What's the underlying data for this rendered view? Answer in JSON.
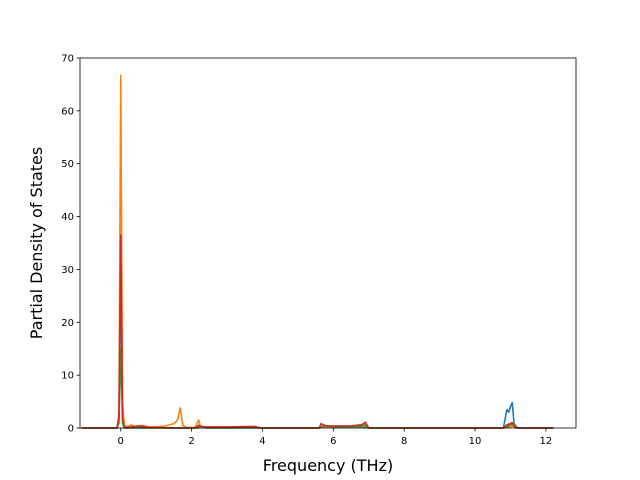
{
  "chart_data": {
    "type": "line",
    "title": "",
    "xlabel": "Frequency (THz)",
    "ylabel": "Partial Density of States",
    "xlim": [
      -1.15,
      12.85
    ],
    "ylim": [
      0,
      70
    ],
    "xticks": [
      0,
      2,
      4,
      6,
      8,
      10,
      12
    ],
    "yticks": [
      0,
      10,
      20,
      30,
      40,
      50,
      60,
      70
    ],
    "grid": false,
    "legend": "none",
    "series": [
      {
        "color": "#1f77b4",
        "points": [
          [
            -1.1,
            0
          ],
          [
            -0.1,
            0
          ],
          [
            -0.05,
            2
          ],
          [
            0,
            29
          ],
          [
            0.05,
            2
          ],
          [
            0.1,
            0.1
          ],
          [
            0.3,
            0.1
          ],
          [
            0.5,
            0.3
          ],
          [
            0.8,
            0.1
          ],
          [
            1.5,
            0
          ],
          [
            2.1,
            0
          ],
          [
            2.2,
            0.4
          ],
          [
            2.4,
            0.1
          ],
          [
            3.8,
            0.2
          ],
          [
            4.0,
            0
          ],
          [
            5.6,
            0
          ],
          [
            5.7,
            0.2
          ],
          [
            6.8,
            0.2
          ],
          [
            7.0,
            0
          ],
          [
            10.8,
            0
          ],
          [
            10.9,
            3.5
          ],
          [
            10.95,
            3.0
          ],
          [
            11.0,
            4.0
          ],
          [
            11.05,
            4.8
          ],
          [
            11.1,
            1.0
          ],
          [
            11.15,
            0
          ],
          [
            12.2,
            0
          ]
        ]
      },
      {
        "color": "#ff7f0e",
        "points": [
          [
            -1.1,
            0
          ],
          [
            -0.1,
            0
          ],
          [
            -0.05,
            3
          ],
          [
            0,
            66.7
          ],
          [
            0.05,
            5
          ],
          [
            0.1,
            0.5
          ],
          [
            0.2,
            0.2
          ],
          [
            0.3,
            0.6
          ],
          [
            0.4,
            0.3
          ],
          [
            0.6,
            0.5
          ],
          [
            0.8,
            0.2
          ],
          [
            1.2,
            0.3
          ],
          [
            1.5,
            0.8
          ],
          [
            1.6,
            1.5
          ],
          [
            1.68,
            3.8
          ],
          [
            1.75,
            0.5
          ],
          [
            1.85,
            0.1
          ],
          [
            2.1,
            0.1
          ],
          [
            2.2,
            1.5
          ],
          [
            2.25,
            0.3
          ],
          [
            2.4,
            0.2
          ],
          [
            3.0,
            0.1
          ],
          [
            3.8,
            0.1
          ],
          [
            3.9,
            0
          ],
          [
            5.6,
            0
          ],
          [
            5.7,
            0.2
          ],
          [
            6.8,
            0.3
          ],
          [
            6.9,
            0.4
          ],
          [
            7.0,
            0
          ],
          [
            10.8,
            0
          ],
          [
            11.0,
            0.3
          ],
          [
            11.1,
            0.4
          ],
          [
            11.2,
            0
          ],
          [
            12.2,
            0
          ]
        ]
      },
      {
        "color": "#2ca02c",
        "points": [
          [
            -1.1,
            0
          ],
          [
            -0.1,
            0
          ],
          [
            -0.05,
            1
          ],
          [
            0,
            15
          ],
          [
            0.05,
            1
          ],
          [
            0.1,
            0
          ],
          [
            2.2,
            0
          ],
          [
            2.25,
            0.3
          ],
          [
            2.4,
            0
          ],
          [
            5.6,
            0
          ],
          [
            5.7,
            0.4
          ],
          [
            6.2,
            0.2
          ],
          [
            6.8,
            0.4
          ],
          [
            6.9,
            0.6
          ],
          [
            7.0,
            0
          ],
          [
            10.8,
            0
          ],
          [
            11.0,
            0.6
          ],
          [
            11.1,
            0.8
          ],
          [
            11.2,
            0
          ],
          [
            12.2,
            0
          ]
        ]
      },
      {
        "color": "#d62728",
        "points": [
          [
            -1.1,
            0
          ],
          [
            -0.1,
            0
          ],
          [
            -0.05,
            2
          ],
          [
            0,
            36.5
          ],
          [
            0.05,
            2
          ],
          [
            0.1,
            0.1
          ],
          [
            0.3,
            0.2
          ],
          [
            0.5,
            0.4
          ],
          [
            0.8,
            0.1
          ],
          [
            1.5,
            0
          ],
          [
            2.1,
            0
          ],
          [
            2.2,
            0.5
          ],
          [
            2.3,
            0.2
          ],
          [
            3.0,
            0.2
          ],
          [
            3.8,
            0.3
          ],
          [
            3.9,
            0
          ],
          [
            5.6,
            0
          ],
          [
            5.65,
            0.8
          ],
          [
            5.8,
            0.4
          ],
          [
            6.5,
            0.4
          ],
          [
            6.8,
            0.6
          ],
          [
            6.9,
            1.1
          ],
          [
            7.0,
            0
          ],
          [
            10.8,
            0
          ],
          [
            10.9,
            0.6
          ],
          [
            11.05,
            1.0
          ],
          [
            11.1,
            0.3
          ],
          [
            11.2,
            0
          ],
          [
            12.2,
            0
          ]
        ]
      }
    ]
  }
}
